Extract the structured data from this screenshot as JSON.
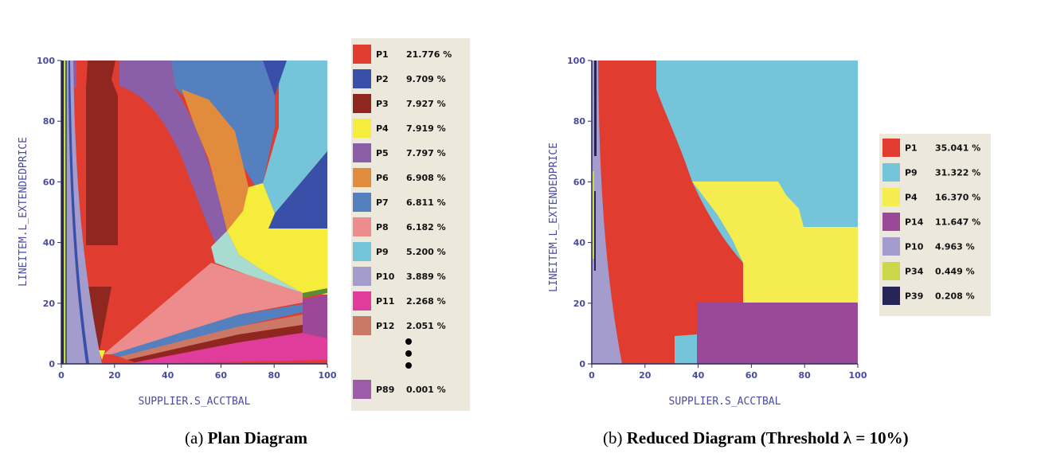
{
  "chart_data": [
    {
      "type": "heatmap",
      "subtype": "plan-diagram",
      "xlabel": "SUPPLIER.S_ACCTBAL",
      "ylabel": "LINEITEM.L_EXTENDEDPRICE",
      "xlim": [
        0,
        100
      ],
      "ylim": [
        0,
        100
      ],
      "xticks": [
        "0",
        "20",
        "40",
        "60",
        "80",
        "100"
      ],
      "yticks": [
        "0",
        "20",
        "40",
        "60",
        "80",
        "100"
      ],
      "legend_position": "right",
      "legend": [
        {
          "name": "P1",
          "value": "21.776 %",
          "color": "#e03c30"
        },
        {
          "name": "P2",
          "value": "9.709 %",
          "color": "#3a4fa8"
        },
        {
          "name": "P3",
          "value": "7.927 %",
          "color": "#8f2620"
        },
        {
          "name": "P4",
          "value": "7.919 %",
          "color": "#f5ec3c"
        },
        {
          "name": "P5",
          "value": "7.797 %",
          "color": "#8a5fa8"
        },
        {
          "name": "P6",
          "value": "6.908 %",
          "color": "#e08c3c"
        },
        {
          "name": "P7",
          "value": "6.811 %",
          "color": "#5580c0"
        },
        {
          "name": "P8",
          "value": "6.182 %",
          "color": "#ec8c8c"
        },
        {
          "name": "P9",
          "value": "5.200 %",
          "color": "#74c4da"
        },
        {
          "name": "P10",
          "value": "3.889 %",
          "color": "#a49ccc"
        },
        {
          "name": "P11",
          "value": "2.268 %",
          "color": "#e03c9c"
        },
        {
          "name": "P12",
          "value": "2.051 %",
          "color": "#cc7866"
        }
      ],
      "legend_tail": {
        "name": "P89",
        "value": "0.001 %",
        "color": "#9c5ca8"
      },
      "caption_prefix": "(a)",
      "caption_title": "Plan Diagram"
    },
    {
      "type": "heatmap",
      "subtype": "reduced-plan-diagram",
      "xlabel": "SUPPLIER.S_ACCTBAL",
      "ylabel": "LINEITEM.L_EXTENDEDPRICE",
      "xlim": [
        0,
        100
      ],
      "ylim": [
        0,
        100
      ],
      "xticks": [
        "0",
        "20",
        "40",
        "60",
        "80",
        "100"
      ],
      "yticks": [
        "0",
        "20",
        "40",
        "60",
        "80",
        "100"
      ],
      "legend_position": "right",
      "legend": [
        {
          "name": "P1",
          "value": "35.041 %",
          "color": "#e03c30"
        },
        {
          "name": "P9",
          "value": "31.322 %",
          "color": "#74c4da"
        },
        {
          "name": "P4",
          "value": "16.370 %",
          "color": "#f5ec50"
        },
        {
          "name": "P14",
          "value": "11.647 %",
          "color": "#9a4898"
        },
        {
          "name": "P10",
          "value": "4.963 %",
          "color": "#a49ccc"
        },
        {
          "name": "P34",
          "value": "0.449 %",
          "color": "#cbd84a"
        },
        {
          "name": "P39",
          "value": "0.208 %",
          "color": "#262456"
        }
      ],
      "caption_prefix": "(b)",
      "caption_title": "Reduced Diagram (Threshold λ = 10%)"
    }
  ]
}
